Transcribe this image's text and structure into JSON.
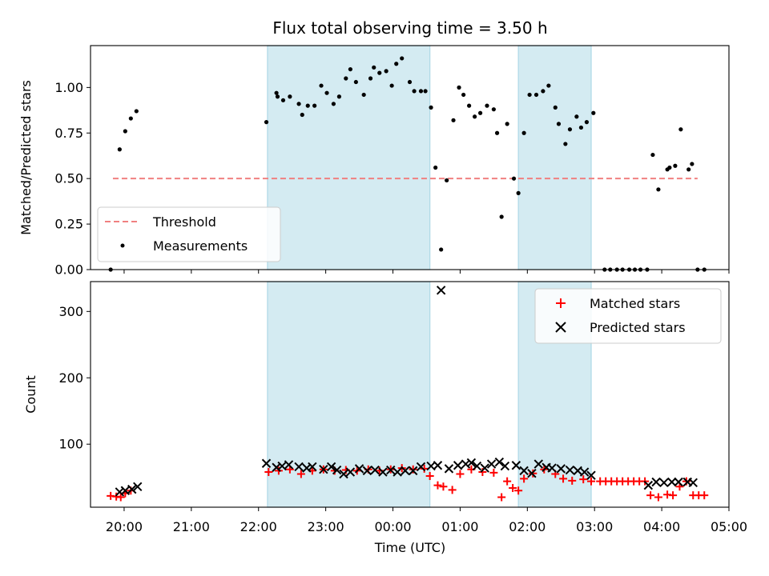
{
  "chart_data": {
    "title": "Flux total observing time = 3.50 h",
    "xlabel": "Time (UTC)",
    "x_ticks": [
      "20:00",
      "21:00",
      "22:00",
      "23:00",
      "00:00",
      "01:00",
      "02:00",
      "03:00",
      "04:00",
      "05:00"
    ],
    "x_range": [
      "19:30",
      "05:00"
    ],
    "shaded_intervals": [
      [
        "22:08",
        "00:33"
      ],
      [
        "01:52",
        "02:57"
      ]
    ],
    "shade_color": "#add8e6",
    "panels": [
      {
        "type": "scatter",
        "ylabel": "Matched/Predicted stars",
        "ylim": [
          0,
          1.23
        ],
        "y_ticks": [
          "0.00",
          "0.25",
          "0.50",
          "0.75",
          "1.00"
        ],
        "threshold": {
          "value": 0.5,
          "from": "19:50",
          "to": "04:32",
          "label": "Threshold",
          "color": "#f08080"
        },
        "legend": {
          "position": "lower-left",
          "entries": [
            "Threshold",
            "Measurements"
          ]
        },
        "series": [
          {
            "name": "Measurements",
            "color": "#000000",
            "points": [
              [
                "19:48",
                0.0
              ],
              [
                "19:56",
                0.66
              ],
              [
                "20:01",
                0.76
              ],
              [
                "20:06",
                0.83
              ],
              [
                "20:11",
                0.87
              ],
              [
                "22:07",
                0.81
              ],
              [
                "22:16",
                0.97
              ],
              [
                "22:17",
                0.95
              ],
              [
                "22:22",
                0.93
              ],
              [
                "22:28",
                0.95
              ],
              [
                "22:36",
                0.91
              ],
              [
                "22:39",
                0.85
              ],
              [
                "22:44",
                0.9
              ],
              [
                "22:50",
                0.9
              ],
              [
                "22:56",
                1.01
              ],
              [
                "23:01",
                0.97
              ],
              [
                "23:07",
                0.91
              ],
              [
                "23:12",
                0.95
              ],
              [
                "23:18",
                1.05
              ],
              [
                "23:22",
                1.1
              ],
              [
                "23:27",
                1.03
              ],
              [
                "23:34",
                0.96
              ],
              [
                "23:40",
                1.05
              ],
              [
                "23:43",
                1.11
              ],
              [
                "23:48",
                1.08
              ],
              [
                "23:54",
                1.09
              ],
              [
                "23:59",
                1.01
              ],
              [
                "00:03",
                1.13
              ],
              [
                "00:08",
                1.16
              ],
              [
                "00:15",
                1.03
              ],
              [
                "00:19",
                0.98
              ],
              [
                "00:25",
                0.98
              ],
              [
                "00:29",
                0.98
              ],
              [
                "00:34",
                0.89
              ],
              [
                "00:38",
                0.56
              ],
              [
                "00:43",
                0.11
              ],
              [
                "00:48",
                0.49
              ],
              [
                "00:54",
                0.82
              ],
              [
                "00:59",
                1.0
              ],
              [
                "01:03",
                0.96
              ],
              [
                "01:08",
                0.9
              ],
              [
                "01:13",
                0.84
              ],
              [
                "01:18",
                0.86
              ],
              [
                "01:24",
                0.9
              ],
              [
                "01:30",
                0.88
              ],
              [
                "01:33",
                0.75
              ],
              [
                "01:37",
                0.29
              ],
              [
                "01:42",
                0.8
              ],
              [
                "01:48",
                0.5
              ],
              [
                "01:52",
                0.42
              ],
              [
                "01:57",
                0.75
              ],
              [
                "02:02",
                0.96
              ],
              [
                "02:08",
                0.96
              ],
              [
                "02:14",
                0.98
              ],
              [
                "02:19",
                1.01
              ],
              [
                "02:25",
                0.89
              ],
              [
                "02:28",
                0.8
              ],
              [
                "02:34",
                0.69
              ],
              [
                "02:38",
                0.77
              ],
              [
                "02:44",
                0.84
              ],
              [
                "02:48",
                0.78
              ],
              [
                "02:53",
                0.81
              ],
              [
                "02:59",
                0.86
              ],
              [
                "03:09",
                0.0
              ],
              [
                "03:14",
                0.0
              ],
              [
                "03:20",
                0.0
              ],
              [
                "03:25",
                0.0
              ],
              [
                "03:31",
                0.0
              ],
              [
                "03:36",
                0.0
              ],
              [
                "03:41",
                0.0
              ],
              [
                "03:47",
                0.0
              ],
              [
                "03:52",
                0.63
              ],
              [
                "03:57",
                0.44
              ],
              [
                "04:05",
                0.55
              ],
              [
                "04:07",
                0.56
              ],
              [
                "04:12",
                0.57
              ],
              [
                "04:17",
                0.77
              ],
              [
                "04:24",
                0.55
              ],
              [
                "04:27",
                0.58
              ],
              [
                "04:32",
                0.0
              ],
              [
                "04:38",
                0.0
              ]
            ]
          }
        ]
      },
      {
        "type": "scatter",
        "ylabel": "Count",
        "ylim": [
          5,
          345
        ],
        "y_ticks": [
          "100",
          "200",
          "300"
        ],
        "legend": {
          "position": "top-right",
          "entries": [
            "Matched stars",
            "Predicted stars"
          ]
        },
        "series": [
          {
            "name": "Matched stars",
            "marker": "+",
            "color": "#ff0000",
            "points": [
              [
                "19:48",
                22
              ],
              [
                "19:53",
                21
              ],
              [
                "19:57",
                20
              ],
              [
                "20:01",
                26
              ],
              [
                "20:06",
                30
              ],
              [
                "22:09",
                58
              ],
              [
                "22:18",
                60
              ],
              [
                "22:28",
                62
              ],
              [
                "22:38",
                55
              ],
              [
                "22:48",
                60
              ],
              [
                "22:58",
                62
              ],
              [
                "23:08",
                60
              ],
              [
                "23:18",
                61
              ],
              [
                "23:28",
                60
              ],
              [
                "23:38",
                62
              ],
              [
                "23:48",
                60
              ],
              [
                "23:58",
                62
              ],
              [
                "00:08",
                64
              ],
              [
                "00:18",
                62
              ],
              [
                "00:28",
                63
              ],
              [
                "00:33",
                52
              ],
              [
                "00:40",
                38
              ],
              [
                "00:45",
                36
              ],
              [
                "00:53",
                31
              ],
              [
                "01:00",
                55
              ],
              [
                "01:10",
                62
              ],
              [
                "01:20",
                58
              ],
              [
                "01:30",
                57
              ],
              [
                "01:37",
                20
              ],
              [
                "01:42",
                44
              ],
              [
                "01:47",
                34
              ],
              [
                "01:52",
                30
              ],
              [
                "01:57",
                48
              ],
              [
                "02:05",
                56
              ],
              [
                "02:15",
                62
              ],
              [
                "02:25",
                55
              ],
              [
                "02:32",
                48
              ],
              [
                "02:40",
                45
              ],
              [
                "02:50",
                47
              ],
              [
                "02:57",
                44
              ],
              [
                "03:05",
                44
              ],
              [
                "03:10",
                44
              ],
              [
                "03:15",
                44
              ],
              [
                "03:20",
                44
              ],
              [
                "03:25",
                44
              ],
              [
                "03:30",
                44
              ],
              [
                "03:35",
                44
              ],
              [
                "03:40",
                44
              ],
              [
                "03:45",
                44
              ],
              [
                "03:50",
                23
              ],
              [
                "03:57",
                20
              ],
              [
                "04:05",
                24
              ],
              [
                "04:10",
                23
              ],
              [
                "04:16",
                36
              ],
              [
                "04:22",
                44
              ],
              [
                "04:28",
                23
              ],
              [
                "04:33",
                23
              ],
              [
                "04:38",
                23
              ]
            ]
          },
          {
            "name": "Predicted stars",
            "marker": "x",
            "color": "#000000",
            "points": [
              [
                "19:56",
                28
              ],
              [
                "20:01",
                30
              ],
              [
                "20:07",
                32
              ],
              [
                "20:12",
                36
              ],
              [
                "22:07",
                71
              ],
              [
                "22:16",
                65
              ],
              [
                "22:21",
                67
              ],
              [
                "22:27",
                69
              ],
              [
                "22:36",
                66
              ],
              [
                "22:43",
                64
              ],
              [
                "22:48",
                66
              ],
              [
                "22:58",
                62
              ],
              [
                "23:05",
                66
              ],
              [
                "23:10",
                61
              ],
              [
                "23:16",
                55
              ],
              [
                "23:22",
                58
              ],
              [
                "23:30",
                63
              ],
              [
                "23:37",
                60
              ],
              [
                "23:44",
                61
              ],
              [
                "23:51",
                58
              ],
              [
                "23:58",
                61
              ],
              [
                "00:04",
                58
              ],
              [
                "00:11",
                60
              ],
              [
                "00:18",
                60
              ],
              [
                "00:25",
                66
              ],
              [
                "00:34",
                67
              ],
              [
                "00:40",
                68
              ],
              [
                "00:43",
                332
              ],
              [
                "00:50",
                63
              ],
              [
                "00:58",
                68
              ],
              [
                "01:05",
                70
              ],
              [
                "01:10",
                72
              ],
              [
                "01:15",
                67
              ],
              [
                "01:22",
                64
              ],
              [
                "01:28",
                70
              ],
              [
                "01:35",
                73
              ],
              [
                "01:40",
                67
              ],
              [
                "01:50",
                68
              ],
              [
                "01:57",
                60
              ],
              [
                "02:04",
                56
              ],
              [
                "02:10",
                70
              ],
              [
                "02:17",
                65
              ],
              [
                "02:22",
                64
              ],
              [
                "02:30",
                63
              ],
              [
                "02:38",
                61
              ],
              [
                "02:45",
                60
              ],
              [
                "02:51",
                58
              ],
              [
                "02:57",
                53
              ],
              [
                "03:48",
                38
              ],
              [
                "03:55",
                43
              ],
              [
                "04:02",
                42
              ],
              [
                "04:09",
                43
              ],
              [
                "04:15",
                43
              ],
              [
                "04:23",
                43
              ],
              [
                "04:28",
                42
              ]
            ]
          }
        ]
      }
    ]
  }
}
